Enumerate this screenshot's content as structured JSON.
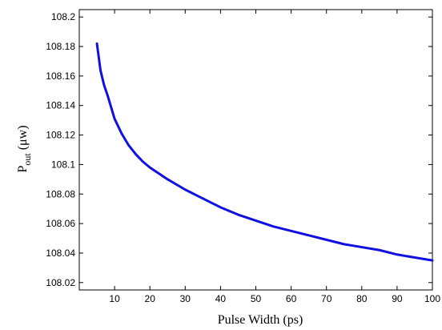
{
  "chart_data": {
    "type": "line",
    "title": "",
    "xlabel": "Pulse Width (ps)",
    "ylabel": {
      "main": "P",
      "subscript": "out",
      "unit": " (μw)"
    },
    "xlim": [
      0,
      100
    ],
    "ylim": [
      108.015,
      108.205
    ],
    "xticks": [
      10,
      20,
      30,
      40,
      50,
      60,
      70,
      80,
      90,
      100
    ],
    "xtick_labels": [
      "10",
      "20",
      "30",
      "40",
      "50",
      "60",
      "70",
      "80",
      "90",
      "100"
    ],
    "yticks": [
      108.02,
      108.04,
      108.06,
      108.08,
      108.1,
      108.12,
      108.14,
      108.16,
      108.18,
      108.2
    ],
    "ytick_labels": [
      "108.02",
      "108.04",
      "108.06",
      "108.08",
      "108.1",
      "108.12",
      "108.14",
      "108.16",
      "108.18",
      "108.2"
    ],
    "grid": false,
    "line_color": "#1010e0",
    "series": [
      {
        "x": [
          5,
          5.5,
          6,
          7,
          8,
          9,
          10,
          12,
          14,
          16,
          18,
          20,
          25,
          30,
          35,
          40,
          45,
          50,
          55,
          60,
          65,
          70,
          75,
          80,
          85,
          90,
          95,
          100
        ],
        "y": [
          108.182,
          108.173,
          108.164,
          108.154,
          108.147,
          108.139,
          108.131,
          108.121,
          108.113,
          108.107,
          108.102,
          108.098,
          108.09,
          108.083,
          108.077,
          108.071,
          108.066,
          108.062,
          108.058,
          108.055,
          108.052,
          108.049,
          108.046,
          108.044,
          108.042,
          108.039,
          108.037,
          108.035
        ]
      }
    ]
  }
}
